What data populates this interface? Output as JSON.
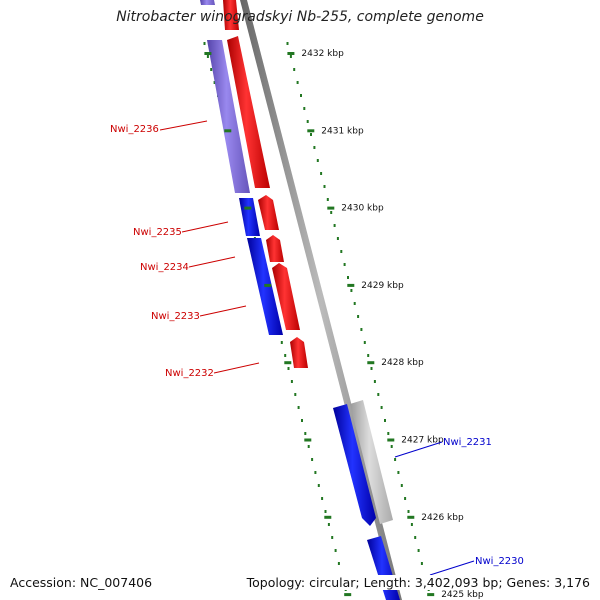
{
  "title": "Nitrobacter winogradskyi Nb-255, complete genome",
  "accession": "Accession: NC_007406",
  "summary": "Topology: circular; Length: 3,402,093 bp; Genes: 3,176",
  "colors": {
    "forward_gene": "#ee0000",
    "reverse_gene": "#0000dd",
    "reverse_gene_faded": "#7766cc",
    "gray_gene": "#bbbbbb",
    "backbone": "#888888",
    "ruler": "#227722",
    "label_red": "#cc0000",
    "label_blue": "#0000cc"
  },
  "ruler": {
    "ticks": [
      {
        "kbp": 2432,
        "label": "2432 kbp"
      },
      {
        "kbp": 2431,
        "label": "2431 kbp"
      },
      {
        "kbp": 2430,
        "label": "2430 kbp"
      },
      {
        "kbp": 2429,
        "label": "2429 kbp"
      },
      {
        "kbp": 2428,
        "label": "2428 kbp"
      },
      {
        "kbp": 2427,
        "label": "2427 kbp"
      },
      {
        "kbp": 2426,
        "label": "2426 kbp"
      },
      {
        "kbp": 2425,
        "label": "2425 kbp"
      }
    ]
  },
  "gene_labels": [
    {
      "name": "Nwi_2236",
      "color": "#cc0000"
    },
    {
      "name": "Nwi_2235",
      "color": "#cc0000"
    },
    {
      "name": "Nwi_2234",
      "color": "#cc0000"
    },
    {
      "name": "Nwi_2233",
      "color": "#cc0000"
    },
    {
      "name": "Nwi_2232",
      "color": "#cc0000"
    },
    {
      "name": "Nwi_2231",
      "color": "#0000cc"
    },
    {
      "name": "Nwi_2230",
      "color": "#0000cc"
    }
  ]
}
